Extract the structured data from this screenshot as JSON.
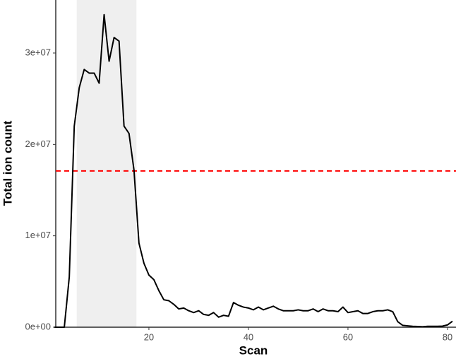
{
  "chart_data": {
    "type": "line",
    "x_label": "Scan",
    "y_label": "Total ion count",
    "x": [
      1,
      2,
      3,
      4,
      5,
      6,
      7,
      8,
      9,
      10,
      11,
      12,
      13,
      14,
      15,
      16,
      17,
      18,
      19,
      20,
      21,
      22,
      23,
      24,
      25,
      26,
      27,
      28,
      29,
      30,
      31,
      32,
      33,
      34,
      35,
      36,
      37,
      38,
      39,
      40,
      41,
      42,
      43,
      44,
      45,
      46,
      47,
      48,
      49,
      50,
      51,
      52,
      53,
      54,
      55,
      56,
      57,
      58,
      59,
      60,
      61,
      62,
      63,
      64,
      65,
      66,
      67,
      68,
      69,
      70,
      71,
      72,
      73,
      74,
      75,
      76,
      77,
      78,
      79,
      80,
      81
    ],
    "series": [
      {
        "color": "#000000",
        "values": [
          0,
          0,
          0,
          5500000,
          22000000,
          26200000,
          28200000,
          27800000,
          27800000,
          26700000,
          34200000,
          29100000,
          31700000,
          31300000,
          22000000,
          21200000,
          17200000,
          9200000,
          7000000,
          5700000,
          5200000,
          4000000,
          3000000,
          2900000,
          2500000,
          2000000,
          2100000,
          1800000,
          1600000,
          1800000,
          1400000,
          1300000,
          1600000,
          1100000,
          1300000,
          1200000,
          2700000,
          2400000,
          2200000,
          2100000,
          1900000,
          2200000,
          1900000,
          2100000,
          2300000,
          2000000,
          1800000,
          1800000,
          1800000,
          1900000,
          1800000,
          1800000,
          2000000,
          1700000,
          2000000,
          1800000,
          1800000,
          1700000,
          2200000,
          1600000,
          1700000,
          1800000,
          1500000,
          1500000,
          1700000,
          1800000,
          1800000,
          1900000,
          1700000,
          600000,
          200000,
          150000,
          100000,
          80000,
          50000,
          100000,
          100000,
          100000,
          120000,
          250000,
          650000
        ]
      }
    ],
    "xlim": [
      1,
      81
    ],
    "xticks": [
      20,
      40,
      60,
      80
    ],
    "ylim": [
      0,
      35800000
    ],
    "yticks": [
      {
        "value": 0,
        "label": "0e+00"
      },
      {
        "value": 10000000,
        "label": "1e+07"
      },
      {
        "value": 20000000,
        "label": "2e+07"
      },
      {
        "value": 30000000,
        "label": "3e+07"
      }
    ],
    "highlight": {
      "xmin": 5.5,
      "xmax": 17.5,
      "color": "#ebebeb"
    },
    "threshold": {
      "value": 17100000,
      "color": "#ff0000"
    }
  }
}
